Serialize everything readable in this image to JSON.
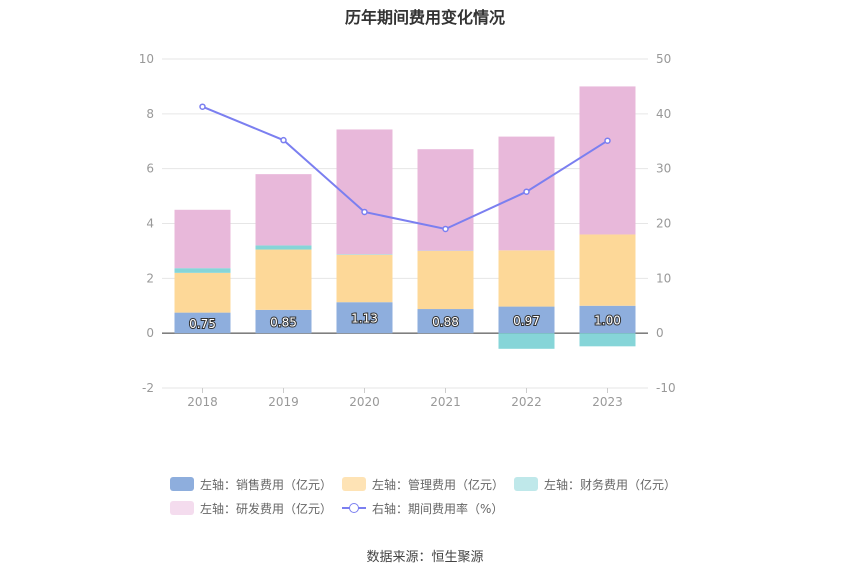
{
  "chart_data": {
    "title": "历年期间费用变化情况",
    "type": "bar",
    "stacked": true,
    "categories": [
      "2018",
      "2019",
      "2020",
      "2021",
      "2022",
      "2023"
    ],
    "left_axis": {
      "ylim": [
        -2,
        10
      ],
      "ticks": [
        "-2",
        "0",
        "2",
        "4",
        "6",
        "8",
        "10"
      ]
    },
    "right_axis": {
      "ylim": [
        -10,
        50
      ],
      "ticks": [
        "-10",
        "0",
        "10",
        "20",
        "30",
        "40",
        "50"
      ]
    },
    "series": [
      {
        "name": "左轴：销售费用（亿元）",
        "axis": "left",
        "color": "#8eaedd",
        "values": [
          0.75,
          0.85,
          1.13,
          0.88,
          0.97,
          1.0
        ],
        "labels": [
          "0.75",
          "0.85",
          "1.13",
          "0.88",
          "0.97",
          "1.00"
        ]
      },
      {
        "name": "左轴：管理费用（亿元）",
        "axis": "left",
        "color": "#fdd898",
        "values": [
          1.45,
          2.2,
          1.73,
          2.12,
          2.05,
          2.6
        ]
      },
      {
        "name": "左轴：财务费用（亿元）",
        "axis": "left",
        "color": "#86d5d8",
        "values": [
          0.17,
          0.15,
          0.02,
          0.01,
          -0.57,
          -0.48
        ]
      },
      {
        "name": "左轴：研发费用（亿元）",
        "axis": "left",
        "color": "#e8b8da",
        "values": [
          2.13,
          2.6,
          4.55,
          3.7,
          4.15,
          5.4
        ]
      },
      {
        "name": "右轴：期间费用率（%）",
        "axis": "right",
        "type": "line",
        "color": "#7b7ff0",
        "values": [
          41.3,
          35.2,
          22.1,
          19.0,
          25.8,
          35.1
        ]
      }
    ],
    "legend_position": "bottom",
    "grid": true
  },
  "legend": [
    {
      "label": "左轴：销售费用（亿元）",
      "color": "#8eaedd",
      "kind": "box"
    },
    {
      "label": "左轴：管理费用（亿元）",
      "color": "#fee3b5",
      "kind": "box"
    },
    {
      "label": "左轴：财务费用（亿元）",
      "color": "#bfe8ea",
      "kind": "box"
    },
    {
      "label": "左轴：研发费用（亿元）",
      "color": "#f4dcee",
      "kind": "box"
    },
    {
      "label": "右轴：期间费用率（%）",
      "color": "#7b7ff0",
      "kind": "line"
    }
  ],
  "source": "数据来源：恒生聚源"
}
